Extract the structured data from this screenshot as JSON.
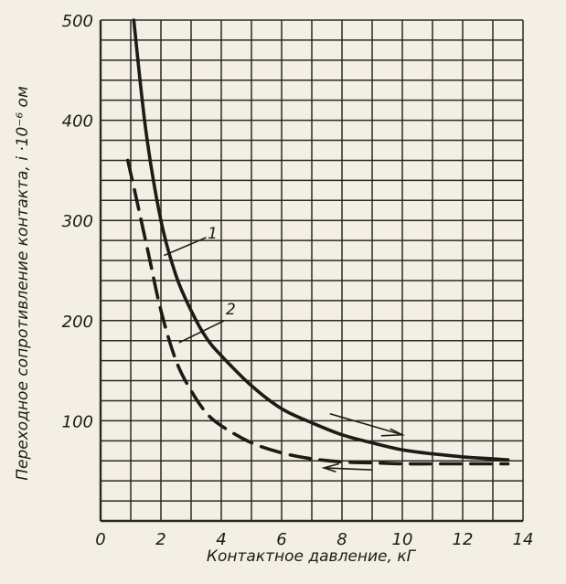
{
  "chart_data": {
    "type": "line",
    "title": "",
    "xlabel": "Контактное давление, кГ",
    "ylabel": "Переходное сопротивление контакта, i ·10⁻⁶ ом",
    "xlim": [
      0,
      14
    ],
    "ylim": [
      0,
      500
    ],
    "x_ticks": [
      "0",
      "2",
      "4",
      "6",
      "8",
      "10",
      "12",
      "14"
    ],
    "y_ticks": [
      "100",
      "200",
      "300",
      "400",
      "500"
    ],
    "grid": true,
    "series": [
      {
        "name": "1",
        "style": "solid",
        "x": [
          1.1,
          1.5,
          2,
          2.5,
          3,
          3.5,
          4,
          5,
          6,
          7,
          8,
          9,
          10,
          11,
          12,
          13,
          13.5
        ],
        "y": [
          500,
          390,
          300,
          245,
          210,
          183,
          165,
          135,
          112,
          98,
          86,
          78,
          71,
          67,
          64,
          62,
          61
        ]
      },
      {
        "name": "2",
        "style": "dashed",
        "x": [
          0.9,
          1.2,
          1.6,
          2,
          2.5,
          3,
          3.5,
          4,
          5,
          6,
          7,
          8,
          9,
          10,
          11,
          12,
          13,
          13.5
        ],
        "y": [
          360,
          320,
          265,
          210,
          160,
          130,
          108,
          95,
          78,
          68,
          62,
          59,
          58,
          57,
          57,
          57,
          57,
          57
        ]
      }
    ]
  },
  "colors": {
    "ink": "#1e1b17",
    "paper": "#f3efe4",
    "grid": "#2b2824"
  }
}
